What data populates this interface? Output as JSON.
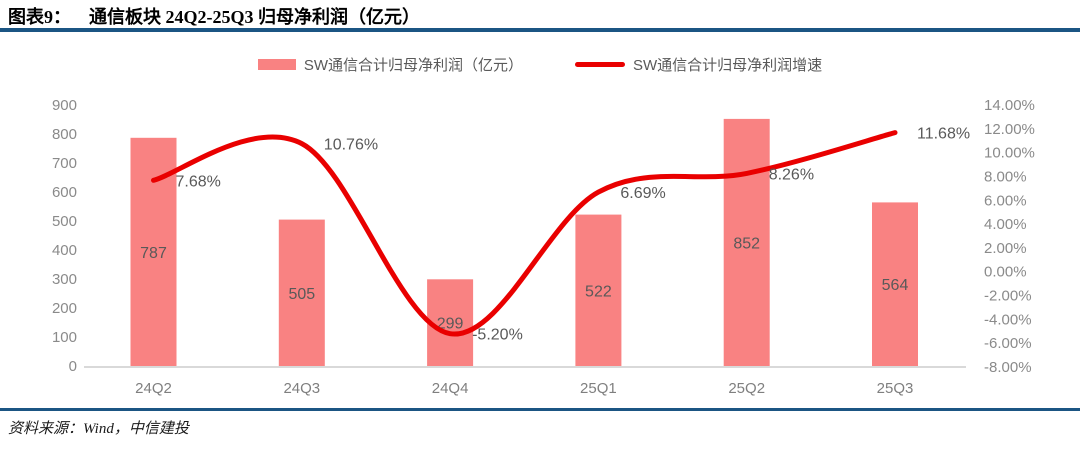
{
  "header": {
    "figure_label": "图表9：",
    "title": "通信板块 24Q2-25Q3 归母净利润（亿元）"
  },
  "footer": {
    "source": "资料来源：Wind，中信建投"
  },
  "colors": {
    "rule": "#1b5583",
    "bar": "#f98282",
    "line": "#e90000",
    "tick_text": "#8a8a8a",
    "data_label": "#595959",
    "x_label": "#7f7f7f",
    "axis_line": "#d9d9d9"
  },
  "chart_data": {
    "type": "bar",
    "subtype": "bar+line combo",
    "title": "通信板块 24Q2-25Q3 归母净利润（亿元）",
    "categories": [
      "24Q2",
      "24Q3",
      "24Q4",
      "25Q1",
      "25Q2",
      "25Q3"
    ],
    "series": [
      {
        "name": "SW通信合计归母净利润（亿元）",
        "type": "bar",
        "axis": "left",
        "values": [
          787,
          505,
          299,
          522,
          852,
          564
        ],
        "labels": [
          "787",
          "505",
          "299",
          "522",
          "852",
          "564"
        ]
      },
      {
        "name": "SW通信合计归母净利润增速",
        "type": "line",
        "axis": "right",
        "values": [
          7.68,
          10.76,
          -5.2,
          6.69,
          8.26,
          11.68
        ],
        "labels": [
          "7.68%",
          "10.76%",
          "-5.20%",
          "6.69%",
          "8.26%",
          "11.68%"
        ]
      }
    ],
    "left_axis": {
      "min": 0,
      "max": 900,
      "step": 100,
      "ticks": [
        "900",
        "800",
        "700",
        "600",
        "500",
        "400",
        "300",
        "200",
        "100",
        "0"
      ]
    },
    "right_axis": {
      "min": -8,
      "max": 14,
      "step": 2,
      "ticks": [
        "14.00%",
        "12.00%",
        "10.00%",
        "8.00%",
        "6.00%",
        "4.00%",
        "2.00%",
        "0.00%",
        "-2.00%",
        "-4.00%",
        "-6.00%",
        "-8.00%"
      ]
    },
    "grid": false,
    "legend_position": "top-center",
    "line_smoothing": "spline"
  }
}
